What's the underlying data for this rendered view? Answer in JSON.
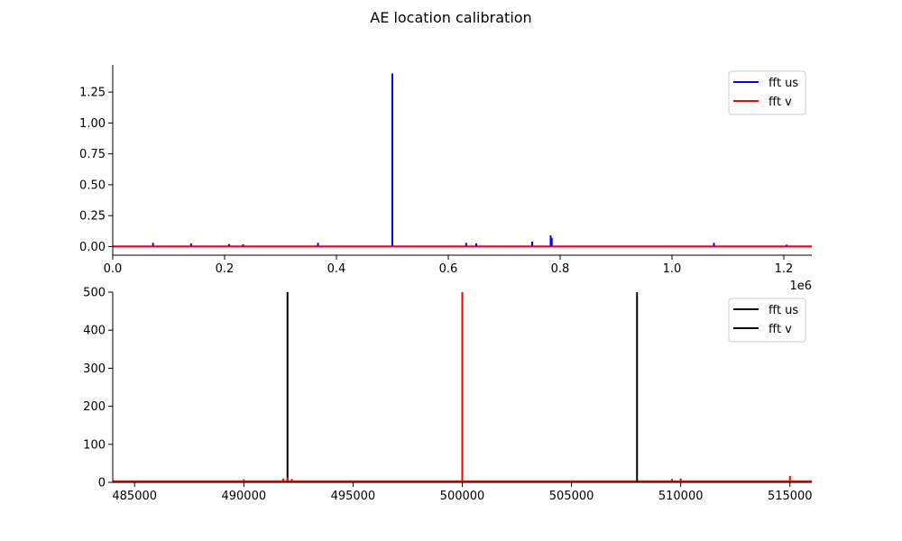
{
  "figure_title": "AE location calibration",
  "chart_data": [
    {
      "type": "line",
      "title": "",
      "xlabel": "",
      "ylabel": "",
      "x_offset_label": "1e6",
      "xlim": [
        0,
        1250000
      ],
      "ylim": [
        -0.07,
        1.47
      ],
      "xticks": [
        0,
        200000,
        400000,
        600000,
        800000,
        1000000,
        1200000
      ],
      "xtick_labels": [
        "0.0",
        "0.2",
        "0.4",
        "0.6",
        "0.8",
        "1.0",
        "1.2"
      ],
      "yticks": [
        0,
        0.25,
        0.5,
        0.75,
        1.0,
        1.25
      ],
      "ytick_labels": [
        "0.00",
        "0.25",
        "0.50",
        "0.75",
        "1.00",
        "1.25"
      ],
      "grid": false,
      "legend_position": "upper right",
      "series": [
        {
          "name": "fft us",
          "color": "#0000ff",
          "baseline": 0.0,
          "spikes": [
            [
              72000,
              0.03
            ],
            [
              140000,
              0.025
            ],
            [
              208000,
              0.02
            ],
            [
              233000,
              0.018
            ],
            [
              367000,
              0.03
            ],
            [
              500000,
              1.4
            ],
            [
              632000,
              0.03
            ],
            [
              650000,
              0.025
            ],
            [
              750000,
              0.04
            ],
            [
              783000,
              0.09
            ],
            [
              785000,
              0.07
            ],
            [
              1075000,
              0.03
            ],
            [
              1205000,
              0.015
            ]
          ]
        },
        {
          "name": "fft v",
          "color": "#ff0000",
          "baseline": 0.0,
          "spikes": []
        }
      ]
    },
    {
      "type": "line",
      "title": "",
      "xlabel": "",
      "ylabel": "",
      "xlim": [
        484000,
        516000
      ],
      "ylim": [
        0,
        500
      ],
      "xticks": [
        485000,
        490000,
        495000,
        500000,
        505000,
        510000,
        515000
      ],
      "xtick_labels": [
        "485000",
        "490000",
        "495000",
        "500000",
        "505000",
        "510000",
        "515000"
      ],
      "yticks": [
        0,
        100,
        200,
        300,
        400,
        500
      ],
      "ytick_labels": [
        "0",
        "100",
        "200",
        "300",
        "400",
        "500"
      ],
      "grid": false,
      "legend_position": "upper right",
      "series": [
        {
          "name": "fft us",
          "color": "#000000",
          "spikes": [
            [
              492000,
              500
            ],
            [
              508000,
              500
            ]
          ]
        },
        {
          "name": "fft v",
          "color": "#000000",
          "legend_color": "#000000"
        }
      ],
      "overlay_series": {
        "color": "#ff0000",
        "baseline": 3,
        "spikes": [
          [
            490000,
            8
          ],
          [
            491800,
            10
          ],
          [
            492000,
            12
          ],
          [
            492200,
            9
          ],
          [
            500000,
            500
          ],
          [
            509600,
            9
          ],
          [
            510000,
            10
          ],
          [
            515000,
            17
          ]
        ]
      }
    }
  ]
}
